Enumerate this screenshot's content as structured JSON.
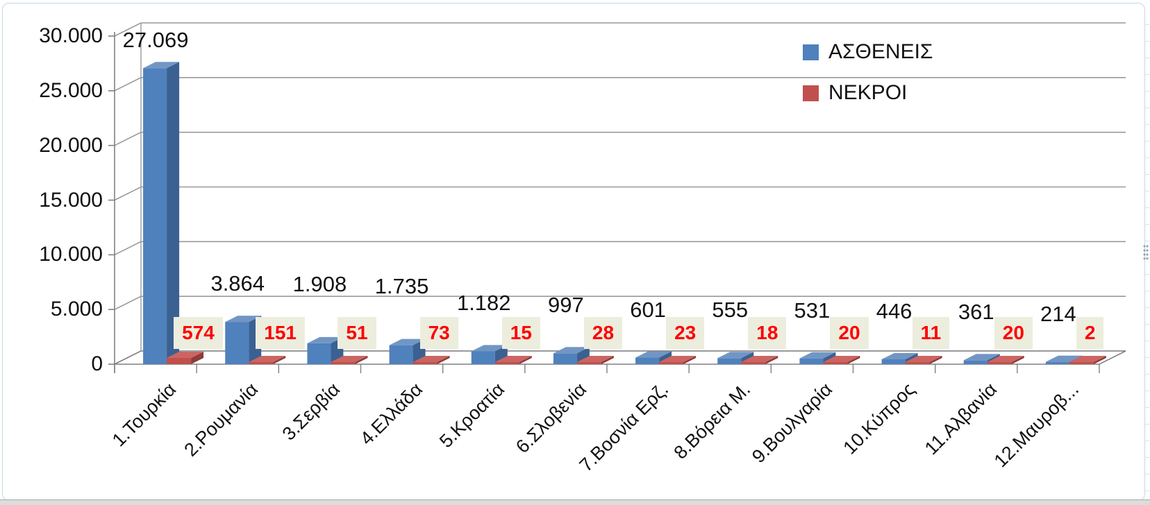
{
  "chart_data": {
    "type": "bar",
    "style": "3d-clustered-column",
    "title": "",
    "categories": [
      "1.Τουρκία",
      "2.Ρουμανία",
      "3.Σερβία",
      "4.Ελλάδα",
      "5.Κροατία",
      "6.Σλοβενία",
      "7.Βοσνία Ερζ.",
      "8.Βόρεια Μ.",
      "9.Βουλγαρία",
      "10.Κύπρος",
      "11.Αλβανία",
      "12.Μαυροβ..."
    ],
    "series": [
      {
        "name": "ΑΣΘΕΝΕΙΣ",
        "values": [
          27069,
          3864,
          1908,
          1735,
          1182,
          997,
          601,
          555,
          531,
          446,
          361,
          214
        ],
        "labels": [
          "27.069",
          "3.864",
          "1.908",
          "1.735",
          "1.182",
          "997",
          "601",
          "555",
          "531",
          "446",
          "361",
          "214"
        ],
        "colors": {
          "front": "#4F81BD",
          "side": "#3A6191",
          "top": "#7296C4"
        },
        "label_color": "#111111"
      },
      {
        "name": "ΝΕΚΡΟΙ",
        "values": [
          574,
          151,
          51,
          73,
          15,
          28,
          23,
          18,
          20,
          11,
          20,
          2
        ],
        "labels": [
          "574",
          "151",
          "51",
          "73",
          "15",
          "28",
          "23",
          "18",
          "20",
          "11",
          "20",
          "2"
        ],
        "colors": {
          "front": "#C0504D",
          "side": "#8E3B39",
          "top": "#CC6562"
        },
        "label_color": "#FF0000",
        "label_bg": "#EDEDDE"
      }
    ],
    "y_axis": {
      "min": 0,
      "max": 30000,
      "tick_values": [
        0,
        5000,
        10000,
        15000,
        20000,
        25000,
        30000
      ],
      "tick_labels": [
        "0",
        "5.000",
        "10.000",
        "15.000",
        "20.000",
        "25.000",
        "30.000"
      ]
    },
    "x_axis": {
      "label": ""
    },
    "legend": {
      "position": "top-right"
    },
    "grid": true,
    "grid_color": "#999999",
    "axis_color": "#808080"
  }
}
